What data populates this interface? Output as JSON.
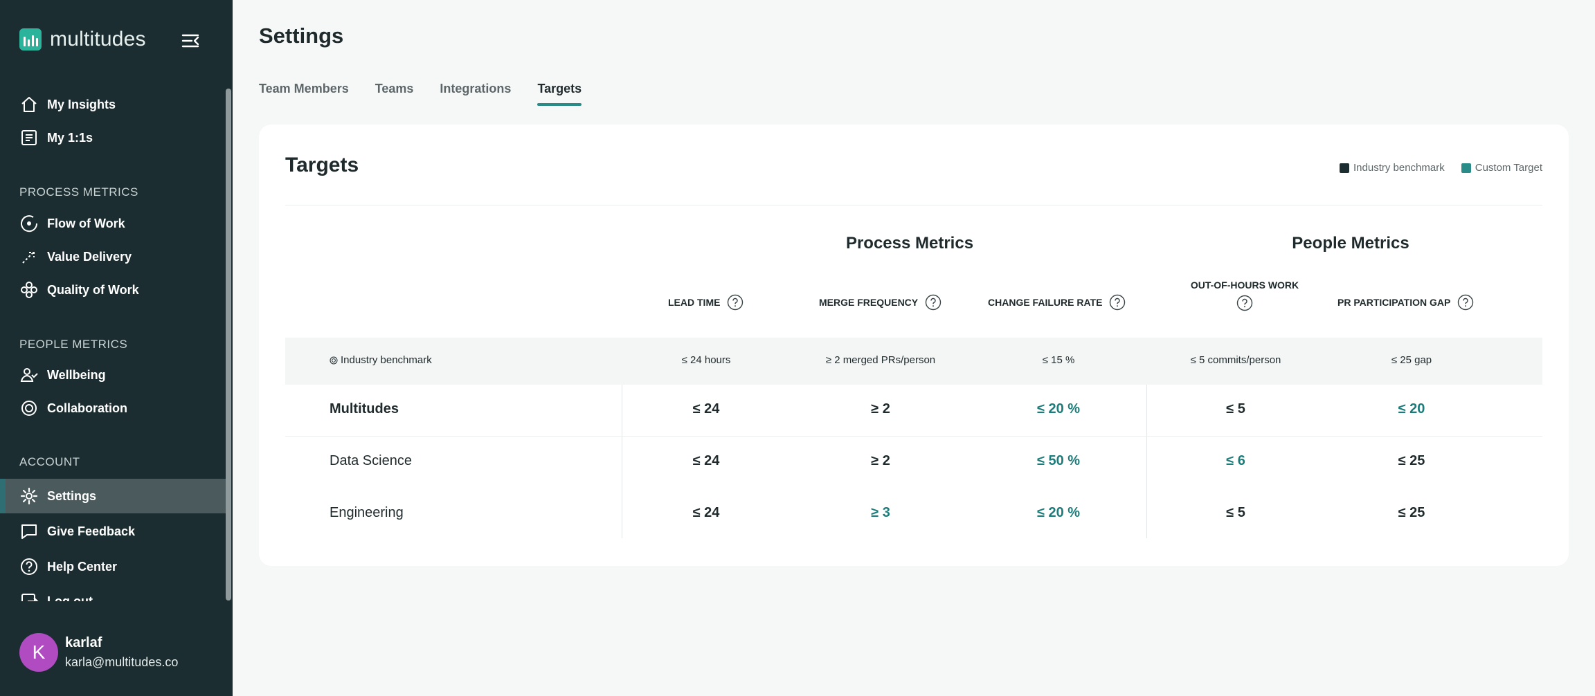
{
  "app": {
    "brand": "multitudes"
  },
  "sidebar": {
    "top_items": [
      {
        "label": "My Insights",
        "icon": "home-icon"
      },
      {
        "label": "My 1:1s",
        "icon": "notes-icon"
      }
    ],
    "sections": [
      {
        "title": "PROCESS METRICS",
        "items": [
          {
            "label": "Flow of Work",
            "icon": "flow-icon"
          },
          {
            "label": "Value Delivery",
            "icon": "value-delivery-icon"
          },
          {
            "label": "Quality of Work",
            "icon": "quality-icon"
          }
        ]
      },
      {
        "title": "PEOPLE METRICS",
        "items": [
          {
            "label": "Wellbeing",
            "icon": "wellbeing-icon"
          },
          {
            "label": "Collaboration",
            "icon": "collaboration-icon"
          }
        ]
      },
      {
        "title": "ACCOUNT",
        "items": [
          {
            "label": "Settings",
            "icon": "gear-icon",
            "active": true
          },
          {
            "label": "Give Feedback",
            "icon": "chat-icon"
          },
          {
            "label": "Help Center",
            "icon": "help-icon"
          },
          {
            "label": "Log out",
            "icon": "logout-icon"
          }
        ]
      }
    ],
    "user": {
      "initial": "K",
      "name": "karlaf",
      "email": "karla@multitudes.co"
    }
  },
  "main": {
    "title": "Settings",
    "tabs": [
      {
        "label": "Team Members"
      },
      {
        "label": "Teams"
      },
      {
        "label": "Integrations"
      },
      {
        "label": "Targets",
        "active": true
      }
    ],
    "card": {
      "title": "Targets",
      "legend": [
        {
          "label": "Industry benchmark",
          "color": "#1c2d31"
        },
        {
          "label": "Custom Target",
          "color": "#2a8c88"
        }
      ],
      "groups": [
        "Process Metrics",
        "People Metrics"
      ],
      "columns": [
        "LEAD TIME",
        "MERGE FREQUENCY",
        "CHANGE FAILURE RATE",
        "OUT-OF-HOURS WORK",
        "PR PARTICIPATION GAP"
      ],
      "benchmark": {
        "label": "Industry benchmark",
        "values": [
          "≤ 24 hours",
          "≥ 2 merged PRs/person",
          "≤ 15 %",
          "≤ 5 commits/person",
          "≤ 25 gap"
        ]
      },
      "rows": [
        {
          "team": "Multitudes",
          "values": [
            "≤ 24",
            "≥ 2",
            "≤ 20 %",
            "≤ 5",
            "≤ 20"
          ]
        },
        {
          "team": "Data Science",
          "values": [
            "≤ 24",
            "≥ 2",
            "≤ 50 %",
            "≤ 6",
            "≤ 25"
          ]
        },
        {
          "team": "Engineering",
          "values": [
            "≤ 24",
            "≥ 3",
            "≤ 20 %",
            "≤ 5",
            "≤ 25"
          ]
        }
      ],
      "custom_color": "#1c7c7a"
    }
  }
}
